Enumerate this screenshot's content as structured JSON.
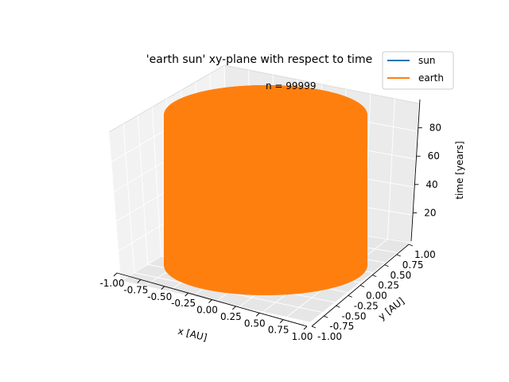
{
  "chart_data": {
    "type": "line",
    "projection": "3d",
    "title": "'earth sun' xy-plane with respect to time",
    "annotation": "n = 99999",
    "xlabel": "x [AU]",
    "ylabel": "y [AU]",
    "zlabel": "time [years]",
    "xlim": [
      -1.0,
      1.0
    ],
    "ylim": [
      -1.0,
      1.0
    ],
    "zlim": [
      0,
      100
    ],
    "x_ticks": [
      "-1.00",
      "-0.75",
      "-0.50",
      "-0.25",
      "0.00",
      "0.25",
      "0.50",
      "0.75",
      "1.00"
    ],
    "y_ticks": [
      "-1.00",
      "-0.75",
      "-0.50",
      "-0.25",
      "0.00",
      "0.25",
      "0.50",
      "0.75",
      "1.00"
    ],
    "z_ticks": [
      "20",
      "40",
      "60",
      "80"
    ],
    "grid": true,
    "legend_position": "top-right",
    "series": [
      {
        "name": "sun",
        "color": "#1f77b4",
        "description_points": {
          "x": [
            0,
            0
          ],
          "y": [
            0,
            0
          ],
          "t": [
            0,
            100
          ]
        }
      },
      {
        "name": "earth",
        "color": "#ff7f0e",
        "orbit": {
          "radius": 1.0,
          "t_start": 0,
          "t_end": 100,
          "revolutions": 100
        }
      }
    ]
  }
}
